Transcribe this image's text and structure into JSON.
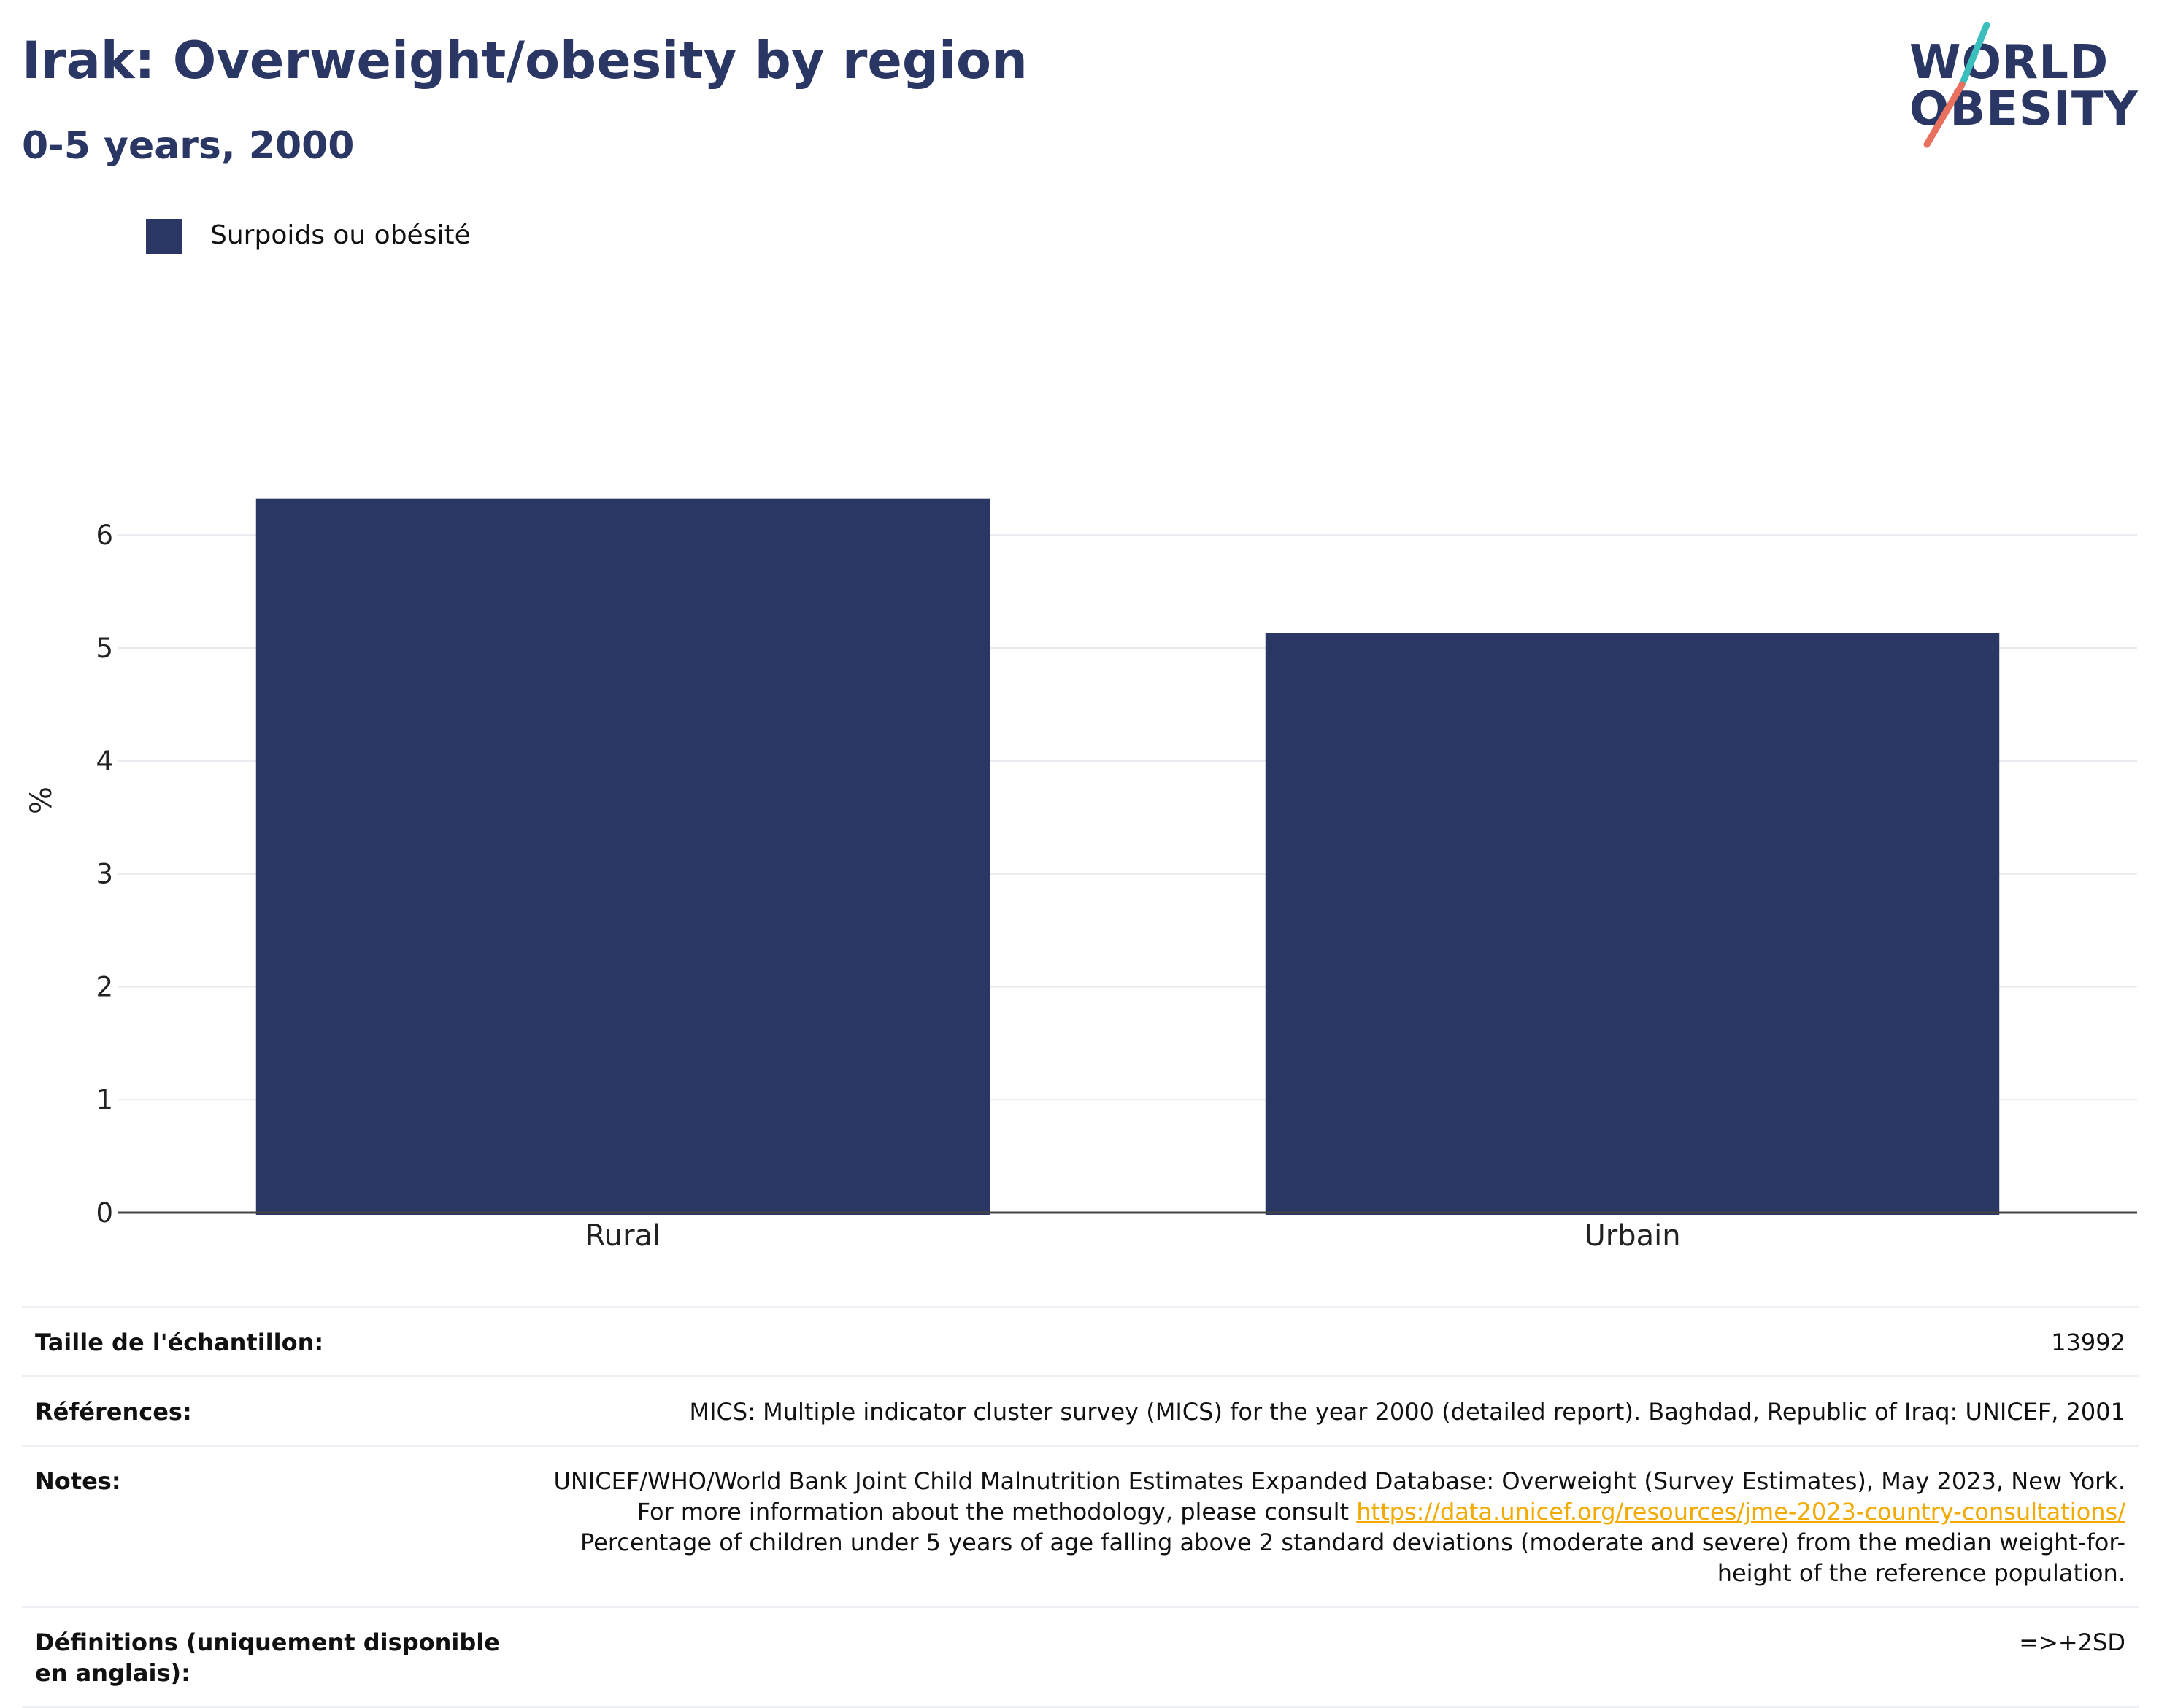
{
  "header": {
    "title": "Irak: Overweight/obesity by region",
    "subtitle": "0-5 years, 2000"
  },
  "logo": {
    "line1": "WORLD",
    "line2": "OBESITY",
    "colors": {
      "text": "#2a3663",
      "slash_top": "#3bbfbd",
      "slash_bottom": "#e8705f"
    }
  },
  "legend": {
    "label": "Surpoids ou obésité",
    "color": "#2a3663"
  },
  "chart_data": {
    "type": "bar",
    "categories": [
      "Rural",
      "Urbain"
    ],
    "series": [
      {
        "name": "Surpoids ou obésité",
        "values": [
          6.32,
          5.13
        ],
        "color": "#2a3663"
      }
    ],
    "ylabel": "%",
    "xlabel": "",
    "ylim": [
      0,
      7.3
    ],
    "yticks": [
      0,
      1,
      2,
      3,
      4,
      5,
      6
    ],
    "grid": true,
    "legend_position": "top-left"
  },
  "info": {
    "sample_size": {
      "label": "Taille de l'échantillon:",
      "value": "13992"
    },
    "references": {
      "label": "Références:",
      "value": "MICS: Multiple indicator cluster survey (MICS) for the year 2000 (detailed report). Baghdad, Republic of Iraq: UNICEF, 2001"
    },
    "notes": {
      "label": "Notes:",
      "text_before": "UNICEF/WHO/World Bank Joint Child Malnutrition Estimates Expanded Database: Overweight (Survey Estimates), May 2023, New York. For more information about the methodology, please consult ",
      "link": "https://data.unicef.org/resources/jme-2023-country-consultations/",
      "text_after": " Percentage of children under 5 years of age falling above 2 standard deviations (moderate and severe) from the median weight-for-height of the reference population."
    },
    "definitions": {
      "label": "Définitions (uniquement disponible en anglais):",
      "value": "=>+2SD"
    }
  }
}
